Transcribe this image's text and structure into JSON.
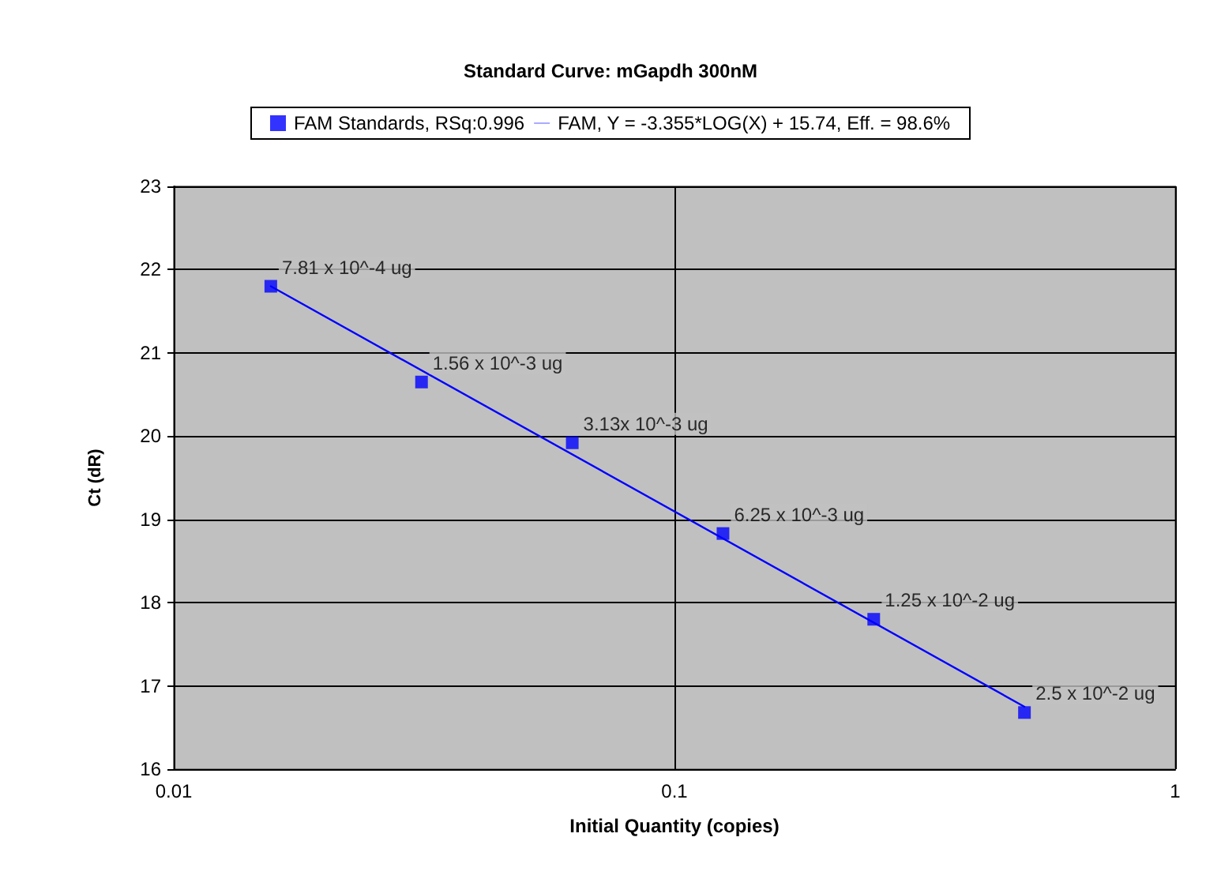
{
  "chart_data": {
    "type": "scatter",
    "title": "Standard Curve: mGapdh 300nM",
    "xlabel": "Initial Quantity (copies)",
    "ylabel": "Ct (dR)",
    "x": [
      0.015625,
      0.03125,
      0.0625,
      0.125,
      0.25,
      0.5
    ],
    "series": [
      {
        "name": "FAM Standards, RSq:0.996",
        "color": "#0000ff",
        "marker": "square",
        "values": [
          21.8,
          20.65,
          19.92,
          18.83,
          17.8,
          16.68
        ]
      },
      {
        "name": "FAM, Y = -3.355*LOG(X) + 15.74, Eff. = 98.6%",
        "type": "line",
        "color": "#0000ff",
        "line_style": "solid",
        "marker": "none",
        "x": [
          0.015625,
          0.5
        ],
        "values": [
          21.8,
          16.75
        ]
      }
    ],
    "annotations": [
      {
        "text": "7.81 x 10^-4 ug",
        "x": 0.015625,
        "y": 21.8
      },
      {
        "text": "1.56 x 10^-3 ug",
        "x": 0.03125,
        "y": 20.65
      },
      {
        "text": "3.13x 10^-3 ug",
        "x": 0.0625,
        "y": 19.92
      },
      {
        "text": "6.25 x 10^-3 ug",
        "x": 0.125,
        "y": 18.83
      },
      {
        "text": "1.25 x 10^-2 ug",
        "x": 0.25,
        "y": 17.8
      },
      {
        "text": "2.5 x 10^-2 ug",
        "x": 0.5,
        "y": 16.68
      }
    ],
    "log": "x",
    "xlim": [
      0.01,
      1
    ],
    "xticks": [
      0.01,
      0.1,
      1
    ],
    "ylim": [
      16,
      23
    ],
    "yticks": [
      16,
      17,
      18,
      19,
      20,
      21,
      22,
      23
    ],
    "grid": true,
    "legend": "top"
  }
}
